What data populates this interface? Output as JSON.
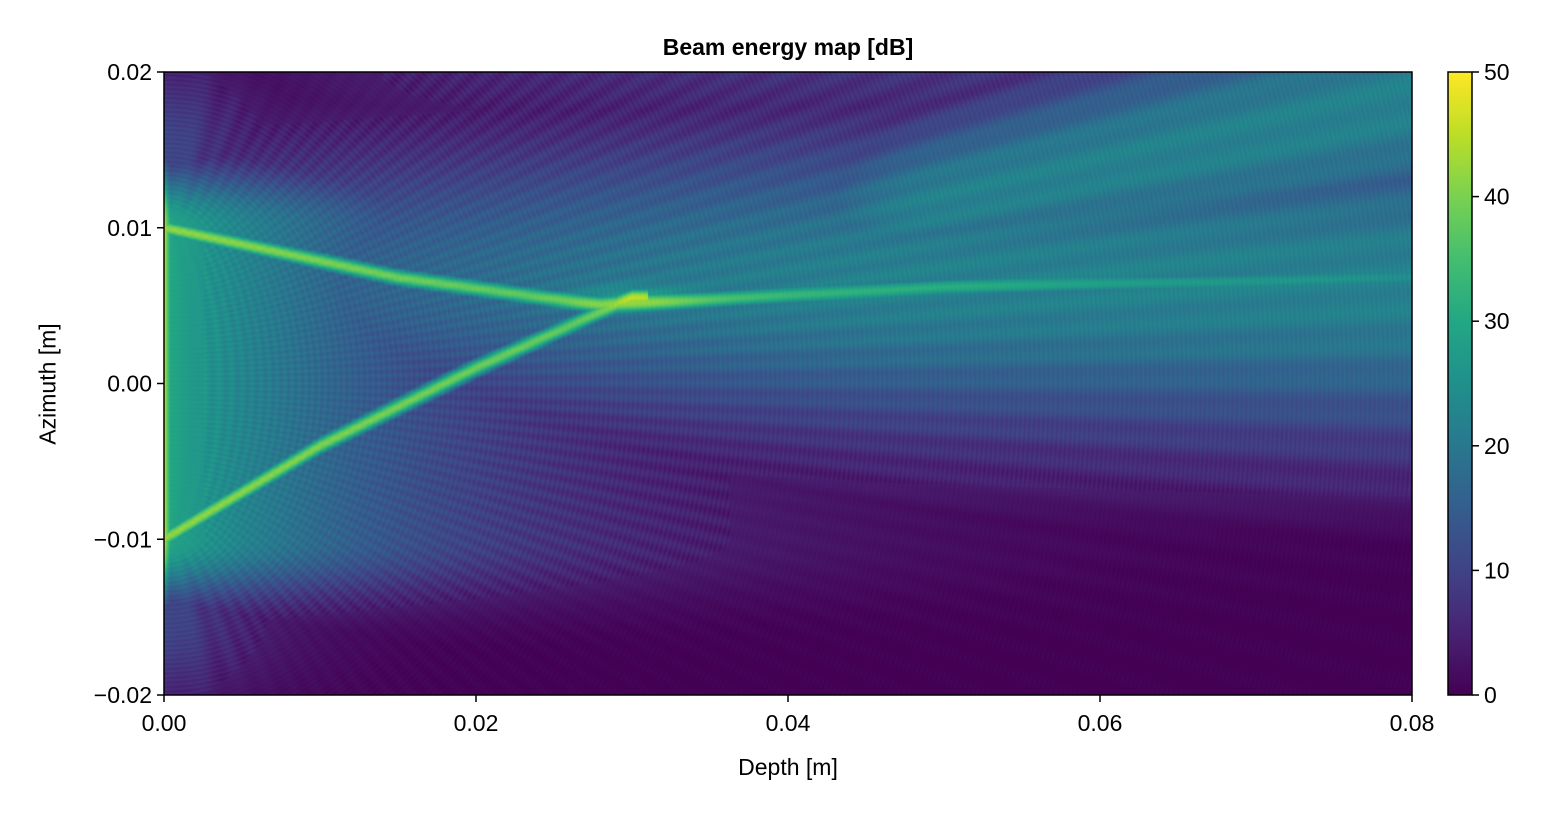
{
  "chart_data": {
    "type": "heatmap",
    "title": "Beam energy map [dB]",
    "xlabel": "Depth [m]",
    "ylabel": "Azimuth [m]",
    "xlim": [
      0.0,
      0.08
    ],
    "ylim": [
      -0.02,
      0.02
    ],
    "x_ticks": [
      0.0,
      0.02,
      0.04,
      0.06,
      0.08
    ],
    "x_tick_labels": [
      "0.00",
      "0.02",
      "0.04",
      "0.06",
      "0.08"
    ],
    "y_ticks": [
      -0.02,
      -0.01,
      0.0,
      0.01,
      0.02
    ],
    "y_tick_labels": [
      "−0.02",
      "−0.01",
      "0.00",
      "0.01",
      "0.02"
    ],
    "colorbar": {
      "colormap": "viridis",
      "range": [
        0,
        50
      ],
      "ticks": [
        0,
        10,
        20,
        30,
        40,
        50
      ],
      "tick_labels": [
        "0",
        "10",
        "20",
        "30",
        "40",
        "50"
      ]
    },
    "features": {
      "aperture_azimuth": [
        -0.01,
        0.01
      ],
      "source_level_db": 47,
      "focus": {
        "depth": 0.03,
        "azimuth": 0.0055,
        "level_db": 38
      },
      "edge_wave_upper": [
        [
          0.0,
          0.01
        ],
        [
          0.015,
          0.0068
        ],
        [
          0.028,
          0.005
        ],
        [
          0.05,
          0.0062
        ],
        [
          0.08,
          0.0068
        ]
      ],
      "edge_wave_lower": [
        [
          0.0,
          -0.01
        ],
        [
          0.01,
          -0.004
        ],
        [
          0.02,
          0.001
        ],
        [
          0.03,
          0.0055
        ]
      ],
      "far_field_main_lobe": {
        "azimuth": 0.0065,
        "level_db": 25
      },
      "far_field_upper_lobe": {
        "depth": 0.055,
        "azimuth": 0.013,
        "level_db": 24
      },
      "shadow_region": {
        "depth_min": 0.025,
        "azimuth_max": -0.012,
        "level_db": 0
      }
    }
  }
}
